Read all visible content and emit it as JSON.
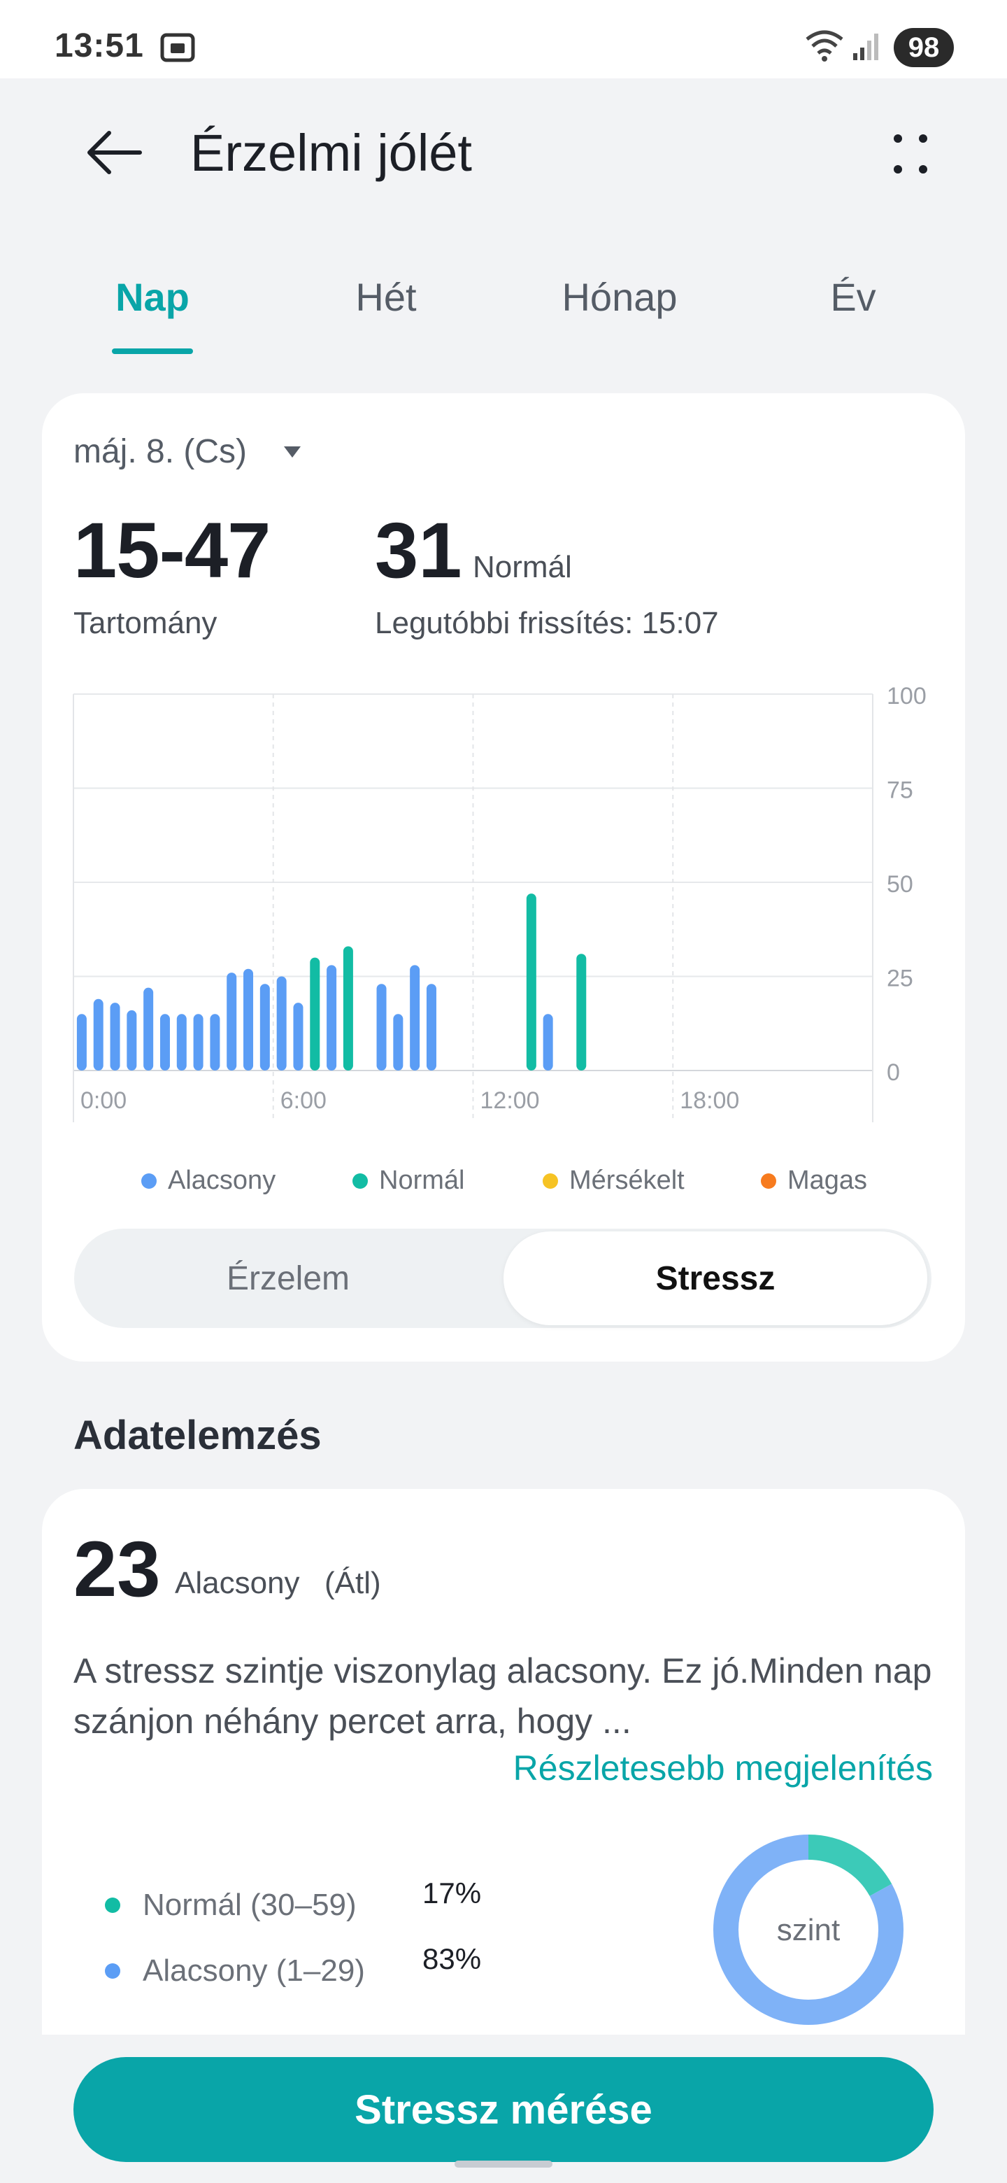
{
  "status_bar": {
    "time": "13:51",
    "battery": "98"
  },
  "header": {
    "title": "Érzelmi jólét"
  },
  "tabs": [
    {
      "label": "Nap",
      "active": true
    },
    {
      "label": "Hét",
      "active": false
    },
    {
      "label": "Hónap",
      "active": false
    },
    {
      "label": "Év",
      "active": false
    }
  ],
  "summary": {
    "date": "máj. 8. (Cs)",
    "range_value": "15-47",
    "range_label": "Tartomány",
    "latest_value": "31",
    "latest_status": "Normál",
    "latest_update": "Legutóbbi frissítés: 15:07"
  },
  "chart_data": {
    "type": "bar",
    "x_ticks": [
      "0:00",
      "6:00",
      "12:00",
      "18:00"
    ],
    "y_ticks": [
      0,
      25,
      50,
      75,
      100
    ],
    "ylim": [
      0,
      100
    ],
    "x_range_hours": [
      0,
      24
    ],
    "series": [
      {
        "name": "Alacsony",
        "color": "#5b9df5",
        "points": [
          {
            "hour": 0.25,
            "value": 15
          },
          {
            "hour": 0.75,
            "value": 19
          },
          {
            "hour": 1.25,
            "value": 18
          },
          {
            "hour": 1.75,
            "value": 16
          },
          {
            "hour": 2.25,
            "value": 22
          },
          {
            "hour": 2.75,
            "value": 15
          },
          {
            "hour": 3.25,
            "value": 15
          },
          {
            "hour": 3.75,
            "value": 15
          },
          {
            "hour": 4.25,
            "value": 15
          },
          {
            "hour": 4.75,
            "value": 26
          },
          {
            "hour": 5.25,
            "value": 27
          },
          {
            "hour": 5.75,
            "value": 23
          },
          {
            "hour": 6.25,
            "value": 25
          },
          {
            "hour": 6.75,
            "value": 18
          },
          {
            "hour": 7.75,
            "value": 28
          },
          {
            "hour": 9.25,
            "value": 23
          },
          {
            "hour": 9.75,
            "value": 15
          },
          {
            "hour": 10.25,
            "value": 28
          },
          {
            "hour": 10.75,
            "value": 23
          },
          {
            "hour": 14.25,
            "value": 15
          }
        ]
      },
      {
        "name": "Normál",
        "color": "#12bca4",
        "points": [
          {
            "hour": 7.25,
            "value": 30
          },
          {
            "hour": 8.25,
            "value": 33
          },
          {
            "hour": 13.75,
            "value": 47
          },
          {
            "hour": 15.25,
            "value": 31
          }
        ]
      },
      {
        "name": "Mérsékelt",
        "color": "#f6c324",
        "points": []
      },
      {
        "name": "Magas",
        "color": "#f77b1e",
        "points": []
      }
    ]
  },
  "legend": [
    {
      "label": "Alacsony",
      "color": "#5b9df5"
    },
    {
      "label": "Normál",
      "color": "#12bca4"
    },
    {
      "label": "Mérsékelt",
      "color": "#f6c324"
    },
    {
      "label": "Magas",
      "color": "#f77b1e"
    }
  ],
  "segmented": {
    "left": "Érzelem",
    "right": "Stressz"
  },
  "analysis": {
    "title": "Adatelemzés",
    "avg_value": "23",
    "avg_status": "Alacsony",
    "avg_label": "(Átl)",
    "text": "A stressz szintje viszonylag alacsony. Ez jó.Minden nap szánjon néhány percet arra, hogy ...",
    "show_more": "Részletesebb megjelenítés",
    "distribution": [
      {
        "label": "Normál (30–59)",
        "percent": "17%",
        "fraction": 0.17,
        "color": "#12bca4"
      },
      {
        "label": "Alacsony (1–29)",
        "percent": "83%",
        "fraction": 0.83,
        "color": "#5b9df5"
      }
    ],
    "donut_label": "szint"
  },
  "actions": {
    "measure": "Stressz mérése"
  }
}
